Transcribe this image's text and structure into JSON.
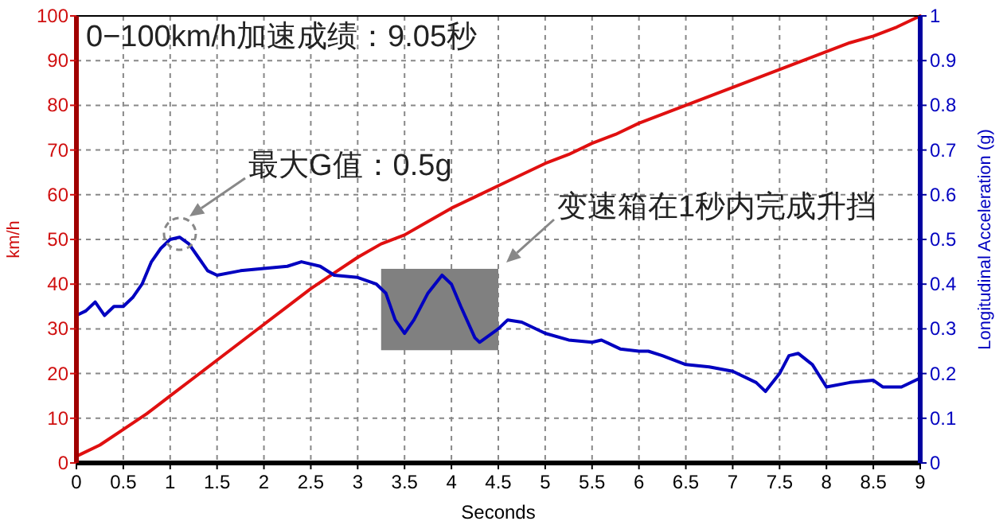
{
  "chart_data": {
    "type": "line",
    "title": "0−100km/h加速成绩：9.05秒",
    "xlabel": "Seconds",
    "ylabel": "km/h",
    "y2label": "Longitudinal Acceleration (g)",
    "xlim": [
      0,
      9
    ],
    "xticks": [
      0,
      0.5,
      1,
      1.5,
      2,
      2.5,
      3,
      3.5,
      4,
      4.5,
      5,
      5.5,
      6,
      6.5,
      7,
      7.5,
      8,
      8.5,
      9
    ],
    "ylim": [
      0,
      100
    ],
    "yticks": [
      0,
      10,
      20,
      30,
      40,
      50,
      60,
      70,
      80,
      90,
      100
    ],
    "y2lim": [
      0,
      1
    ],
    "y2ticks": [
      0,
      0.1,
      0.2,
      0.3,
      0.4,
      0.5,
      0.6,
      0.7,
      0.8,
      0.9,
      1
    ],
    "grid": true,
    "series": [
      {
        "color": "#e01010",
        "x": [
          0,
          0.25,
          0.5,
          0.75,
          1,
          1.25,
          1.5,
          1.75,
          2,
          2.25,
          2.5,
          2.75,
          3,
          3.25,
          3.5,
          3.75,
          4,
          4.25,
          4.5,
          4.75,
          5,
          5.25,
          5.5,
          5.75,
          6,
          6.25,
          6.5,
          6.75,
          7,
          7.25,
          7.5,
          7.75,
          8,
          8.25,
          8.5,
          8.75,
          9
        ],
        "values": [
          1.5,
          4,
          7.5,
          11,
          15,
          19,
          23,
          27,
          31,
          35,
          39,
          42.5,
          46,
          49,
          51,
          54,
          57,
          59.5,
          62,
          64.5,
          67,
          69,
          71.5,
          73.5,
          76,
          78,
          80,
          82,
          84,
          86,
          88,
          90,
          92,
          94,
          95.5,
          97.5,
          100
        ]
      },
      {
        "color": "#0000c0",
        "axis": "y2",
        "x": [
          0,
          0.1,
          0.2,
          0.3,
          0.4,
          0.5,
          0.6,
          0.7,
          0.8,
          0.9,
          1,
          1.1,
          1.2,
          1.3,
          1.4,
          1.5,
          1.75,
          2,
          2.25,
          2.4,
          2.6,
          2.75,
          3,
          3.2,
          3.3,
          3.4,
          3.5,
          3.6,
          3.75,
          3.9,
          4,
          4.1,
          4.25,
          4.3,
          4.5,
          4.6,
          4.75,
          5,
          5.25,
          5.5,
          5.6,
          5.8,
          6,
          6.1,
          6.25,
          6.5,
          6.75,
          7,
          7.25,
          7.35,
          7.5,
          7.6,
          7.7,
          7.85,
          8,
          8.25,
          8.5,
          8.6,
          8.8,
          9
        ],
        "values": [
          0.33,
          0.34,
          0.36,
          0.33,
          0.35,
          0.35,
          0.37,
          0.4,
          0.45,
          0.48,
          0.5,
          0.505,
          0.49,
          0.46,
          0.43,
          0.42,
          0.43,
          0.435,
          0.44,
          0.45,
          0.44,
          0.42,
          0.415,
          0.4,
          0.38,
          0.32,
          0.29,
          0.32,
          0.38,
          0.42,
          0.4,
          0.35,
          0.28,
          0.27,
          0.3,
          0.32,
          0.315,
          0.29,
          0.275,
          0.27,
          0.275,
          0.255,
          0.25,
          0.25,
          0.24,
          0.22,
          0.215,
          0.205,
          0.18,
          0.16,
          0.2,
          0.24,
          0.245,
          0.22,
          0.17,
          0.18,
          0.185,
          0.17,
          0.17,
          0.19
        ]
      }
    ],
    "bands": [
      {
        "axis": "x",
        "from": 3.25,
        "to": 4.5,
        "color": "#808080"
      }
    ],
    "annotations": [
      "最大G值：0.5g",
      "变速箱在1秒内完成升挡"
    ]
  }
}
